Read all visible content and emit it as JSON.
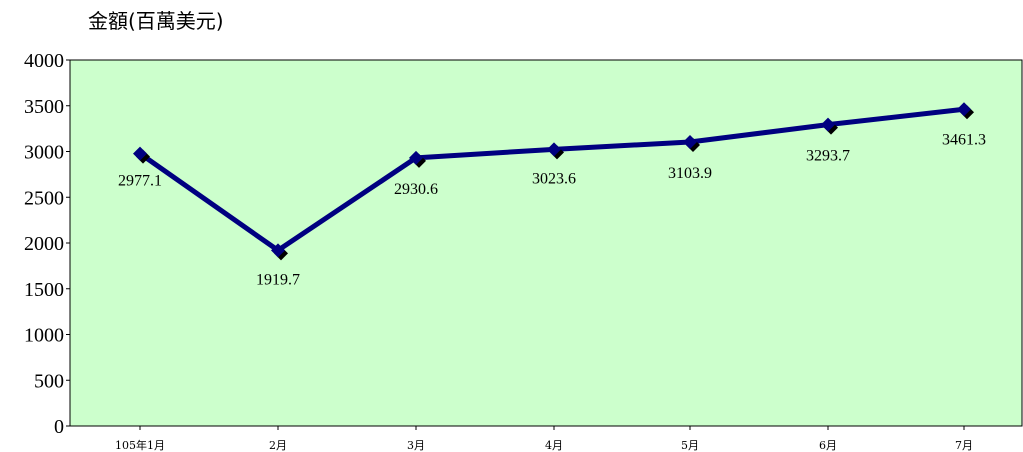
{
  "chart_data": {
    "type": "line",
    "title": "",
    "ylabel": "金額(百萬美元)",
    "xlabel": "",
    "categories": [
      "105年1月",
      "2月",
      "3月",
      "4月",
      "5月",
      "6月",
      "7月"
    ],
    "series": [
      {
        "values": [
          2977.1,
          1919.7,
          2930.6,
          3023.6,
          3103.9,
          3293.7,
          3461.3
        ]
      }
    ],
    "data_labels": [
      "2977.1",
      "1919.7",
      "2930.6",
      "3023.6",
      "3103.9",
      "3293.7",
      "3461.3"
    ],
    "yticks": [
      "0",
      "500",
      "1000",
      "1500",
      "2000",
      "2500",
      "3000",
      "3500",
      "4000"
    ],
    "ylim": [
      0,
      4000
    ],
    "grid": false,
    "legend": "none",
    "colors": {
      "plot_background": "#ccffcc",
      "line": "#000080",
      "marker": "#000080",
      "marker_shadow": "#000000"
    }
  }
}
